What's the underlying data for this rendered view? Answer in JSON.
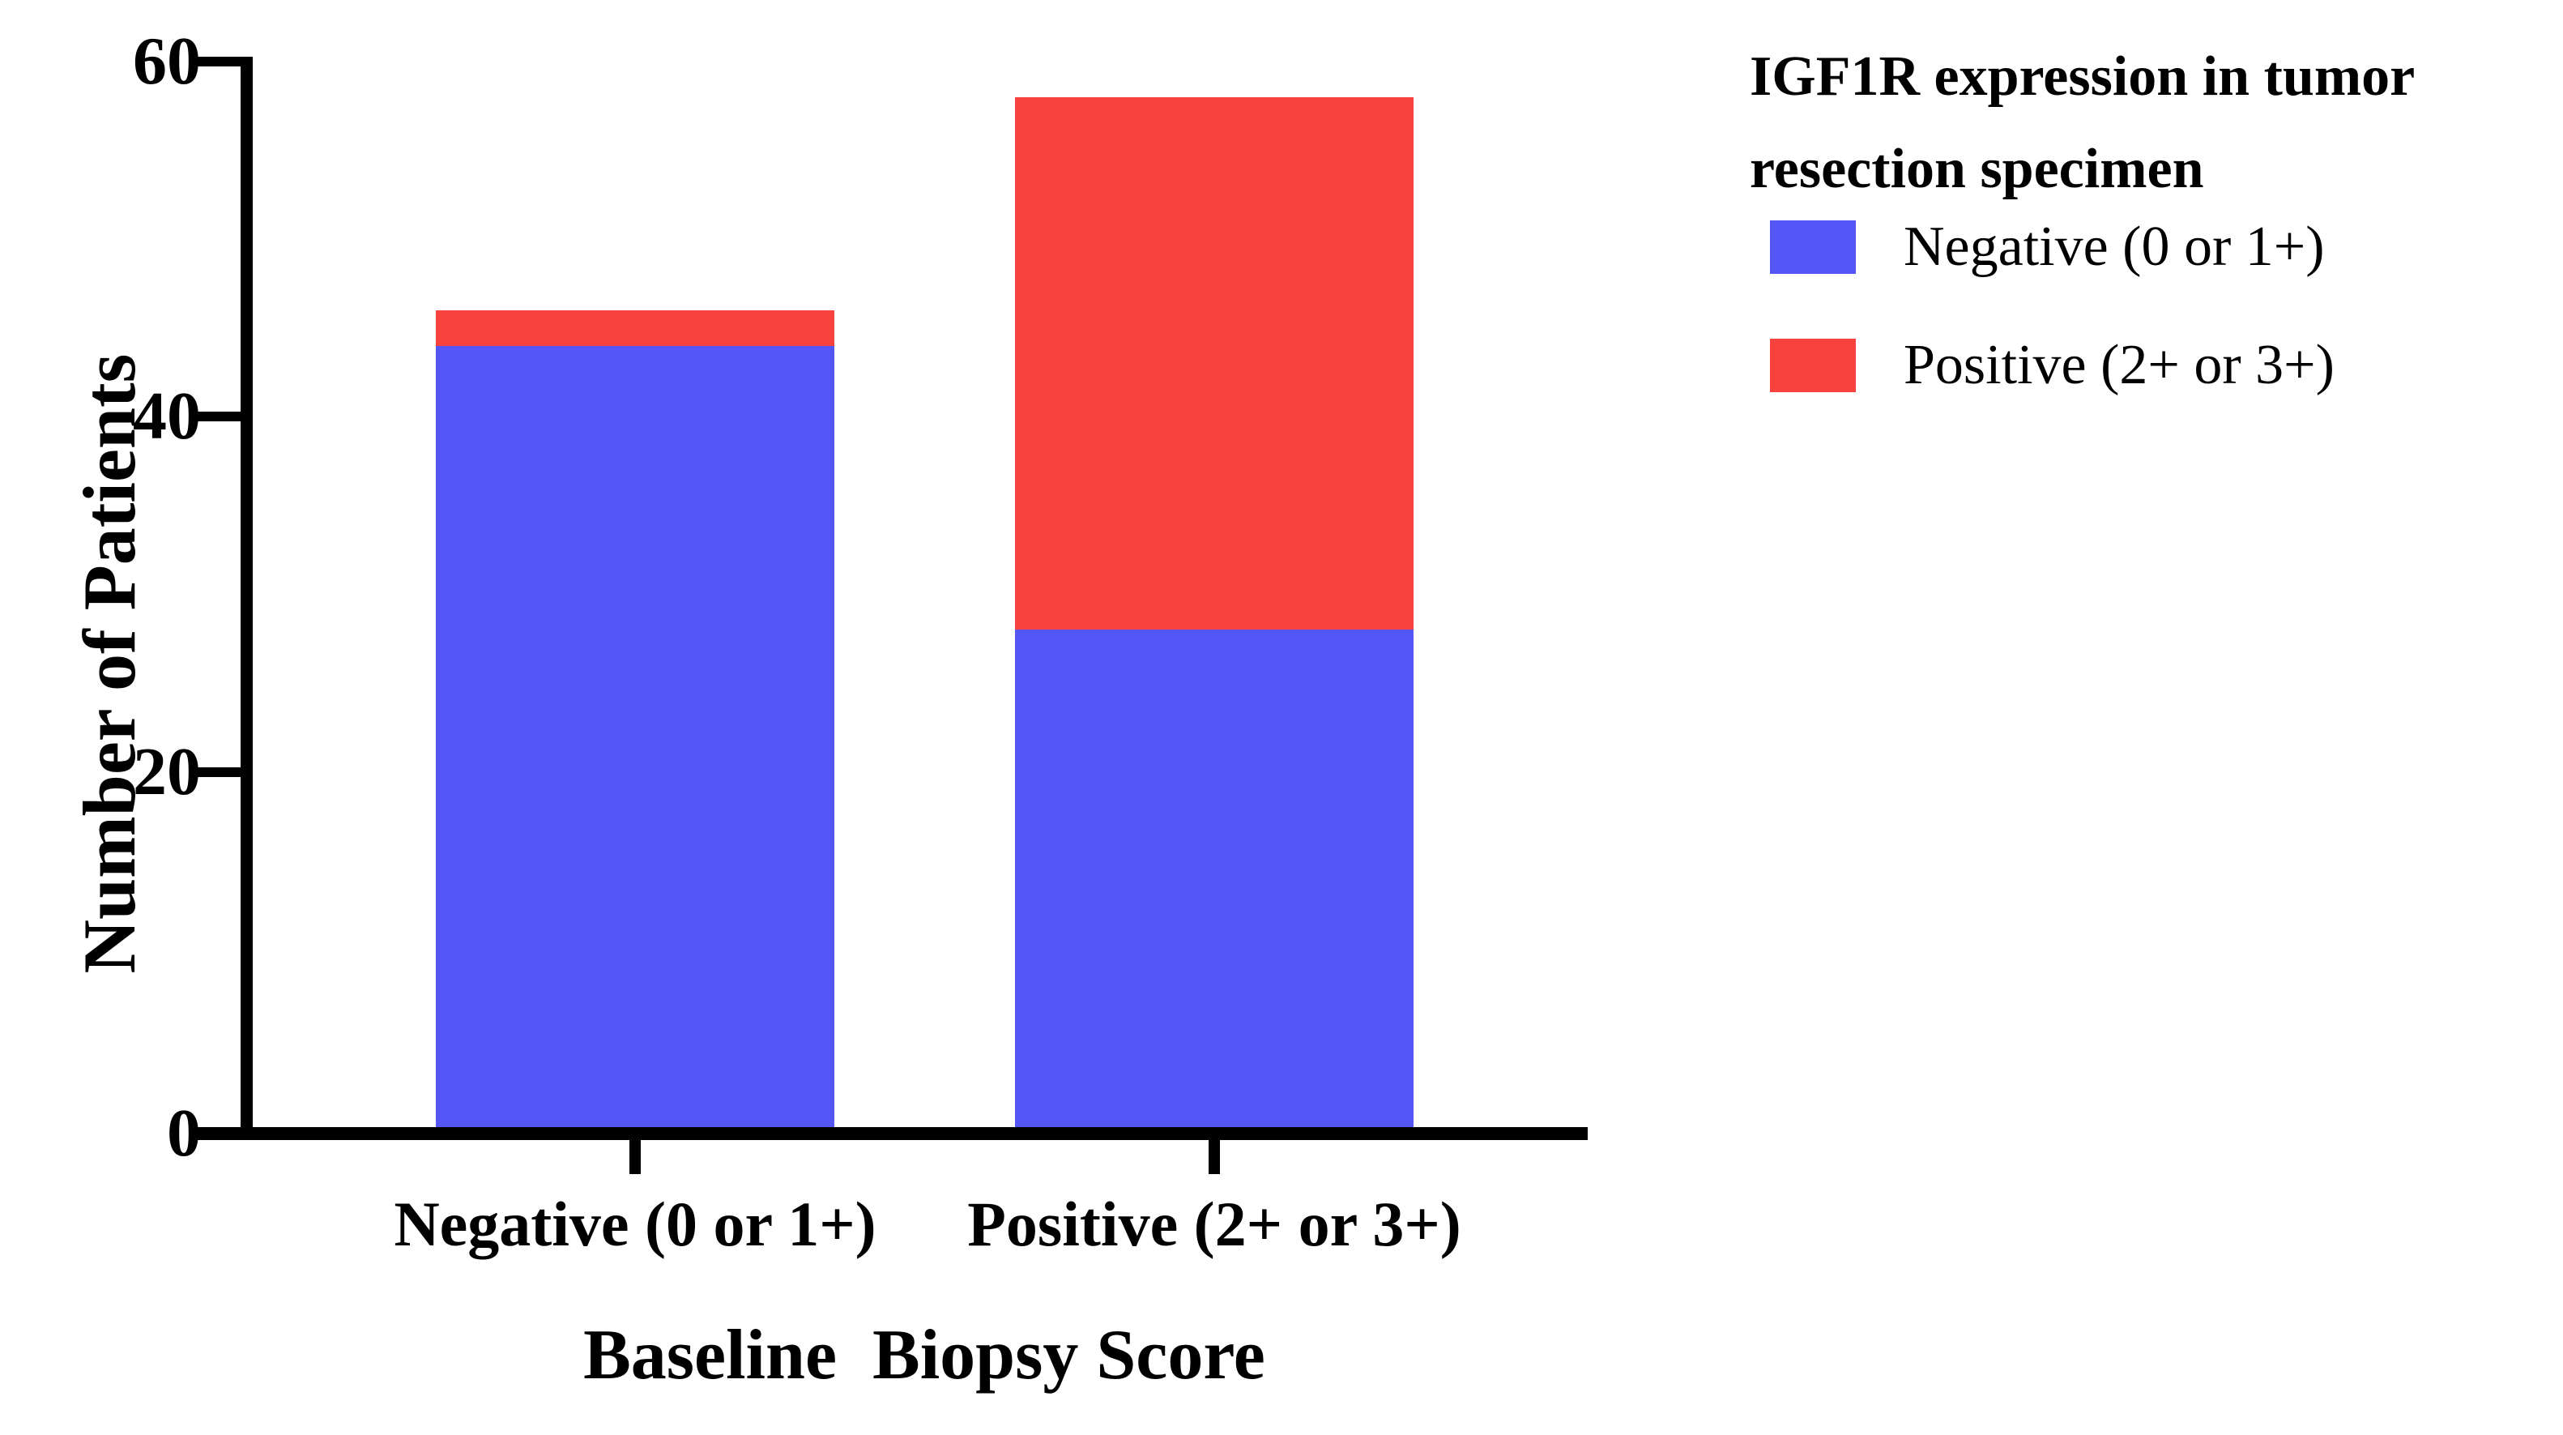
{
  "chart_data": {
    "type": "bar",
    "stacked": true,
    "title": "",
    "xlabel": "Baseline  Biopsy Score",
    "ylabel": "Number of Patients",
    "categories": [
      "Negative (0 or 1+)",
      "Positive (2+ or 3+)"
    ],
    "series": [
      {
        "name": "Negative (0 or 1+)",
        "color": "#5457F5",
        "values": [
          44,
          28
        ]
      },
      {
        "name": "Positive (2+ or 3+)",
        "color": "#F8423E",
        "values": [
          2,
          30
        ]
      }
    ],
    "ylim": [
      0,
      60
    ],
    "y_ticks": [
      0,
      20,
      40,
      60
    ],
    "grid": false,
    "legend": {
      "position": "right",
      "title_line1": "IGF1R expression in tumor",
      "title_line2": "resection specimen",
      "entries": [
        {
          "label": "Negative (0 or 1+)",
          "color": "#5457F5"
        },
        {
          "label": "Positive (2+ or 3+)",
          "color": "#F8423E"
        }
      ]
    }
  },
  "colors": {
    "axis": "#000000",
    "background": "#FFFFFF",
    "blue": "#5457F5",
    "red": "#F8423E"
  }
}
